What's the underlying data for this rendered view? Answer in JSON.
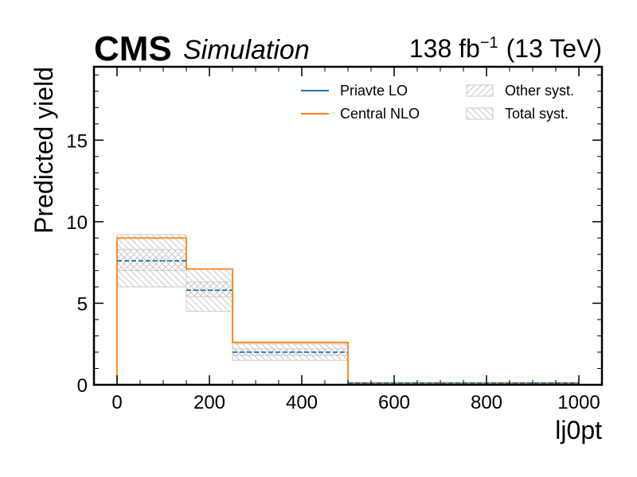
{
  "header": {
    "experiment": "CMS",
    "label": "Simulation",
    "lumi_value": "138 fb",
    "lumi_exp": "−1",
    "energy": "(13 TeV)"
  },
  "chart_data": {
    "type": "step",
    "xlabel": "lj0pt",
    "ylabel": "Predicted yield",
    "xlim": [
      -50,
      1050
    ],
    "ylim": [
      0,
      19.5
    ],
    "xticks": [
      0,
      200,
      400,
      600,
      800,
      1000
    ],
    "yticks": [
      0,
      5,
      10,
      15
    ],
    "bin_edges": [
      0,
      150,
      250,
      500,
      1000
    ],
    "series": [
      {
        "name": "Priavte LO",
        "color": "#1f77b4",
        "dashed": true,
        "values": [
          7.6,
          5.8,
          2.0,
          0.1
        ]
      },
      {
        "name": "Central NLO",
        "color": "#ff7f0e",
        "dashed": false,
        "values": [
          9.0,
          7.1,
          2.6,
          0.1
        ]
      }
    ],
    "bands": [
      {
        "name": "Other syst.",
        "hatch": "forward",
        "color": "#cccccc",
        "low": [
          7.0,
          5.4,
          1.8,
          0.05
        ],
        "high": [
          8.3,
          6.3,
          2.2,
          0.15
        ]
      },
      {
        "name": "Total syst.",
        "hatch": "backward",
        "color": "#cccccc",
        "low": [
          6.0,
          4.5,
          1.5,
          0.05
        ],
        "high": [
          9.2,
          7.1,
          2.5,
          0.15
        ]
      }
    ],
    "legend_loc": "upper right"
  }
}
